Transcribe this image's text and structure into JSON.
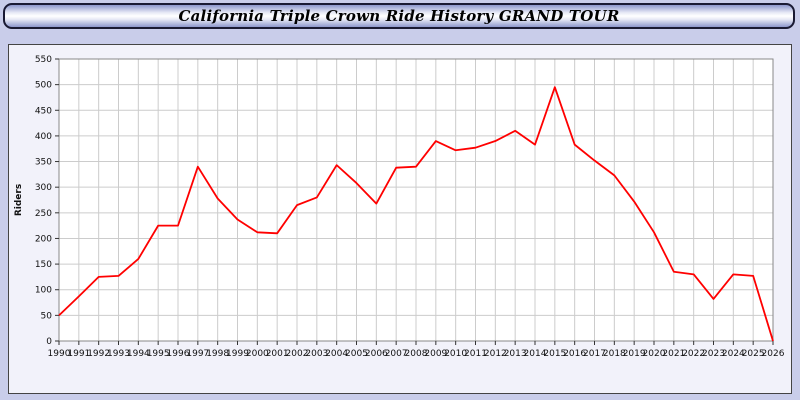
{
  "header": {
    "title": "California Triple Crown Ride History GRAND TOUR"
  },
  "chart_data": {
    "type": "line",
    "title": "California Triple Crown Ride History GRAND TOUR",
    "xlabel": "",
    "ylabel": "Riders",
    "ylim": [
      0,
      550
    ],
    "ytick_step": 50,
    "yticks": [
      0,
      50,
      100,
      150,
      200,
      250,
      300,
      350,
      400,
      450,
      500,
      550
    ],
    "grid": true,
    "legend": "none",
    "line_color": "#ff0000",
    "categories": [
      "1990",
      "1991",
      "1992",
      "1993",
      "1994",
      "1995",
      "1996",
      "1997",
      "1998",
      "1999",
      "2000",
      "2001",
      "2002",
      "2003",
      "2004",
      "2005",
      "2006",
      "2007",
      "2008",
      "2009",
      "2010",
      "2011",
      "2012",
      "2013",
      "2014",
      "2015",
      "2016",
      "2017",
      "2018",
      "2019",
      "2020",
      "2021",
      "2022",
      "2023",
      "2024",
      "2025",
      "2026"
    ],
    "series": [
      {
        "name": "Riders",
        "values": [
          50,
          87,
          125,
          127,
          160,
          225,
          225,
          340,
          278,
          237,
          212,
          210,
          265,
          280,
          343,
          308,
          268,
          338,
          340,
          390,
          372,
          377,
          390,
          410,
          383,
          495,
          383,
          352,
          323,
          272,
          212,
          135,
          130,
          82,
          130,
          127,
          0
        ]
      }
    ]
  }
}
